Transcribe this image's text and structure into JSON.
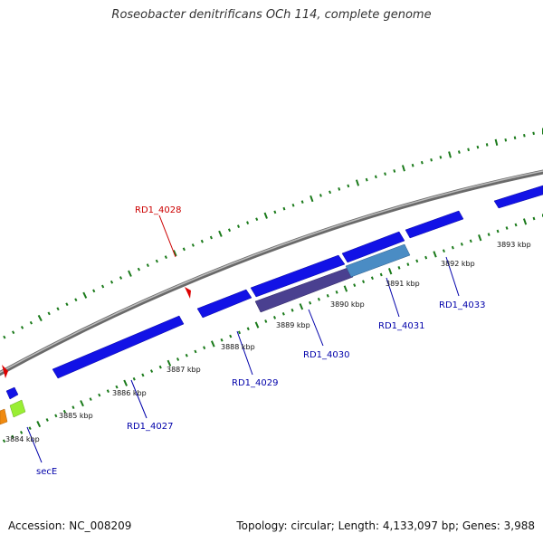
{
  "title": "Roseobacter denitrificans OCh 114, complete genome",
  "footer": {
    "accession": "Accession: NC_008209",
    "summary": "Topology: circular; Length: 4,133,097 bp; Genes: 3,988"
  },
  "colors": {
    "backbone": "#7a7a7a",
    "tick": "#1a7a1a",
    "forward_gene": "#1010e0",
    "label_blue": "#0000aa",
    "label_red": "#cc0000",
    "marker_red": "#dd0000",
    "gene_purple": "#4a4090",
    "gene_lightblue": "#4a90c8",
    "gene_green": "#99ee33",
    "gene_orange": "#f08a10"
  },
  "kbp_labels": [
    "3884 kbp",
    "3885 kbp",
    "3886 kbp",
    "3887 kbp",
    "3888 kbp",
    "3889 kbp",
    "3890 kbp",
    "3891 kbp",
    "3892 kbp",
    "3893 kbp"
  ],
  "gene_labels": [
    {
      "name": "RD1_4028",
      "color": "red"
    },
    {
      "name": "secE",
      "color": "blue"
    },
    {
      "name": "RD1_4027",
      "color": "blue"
    },
    {
      "name": "RD1_4029",
      "color": "blue"
    },
    {
      "name": "RD1_4030",
      "color": "blue"
    },
    {
      "name": "RD1_4031",
      "color": "blue"
    },
    {
      "name": "RD1_4033",
      "color": "blue"
    }
  ]
}
